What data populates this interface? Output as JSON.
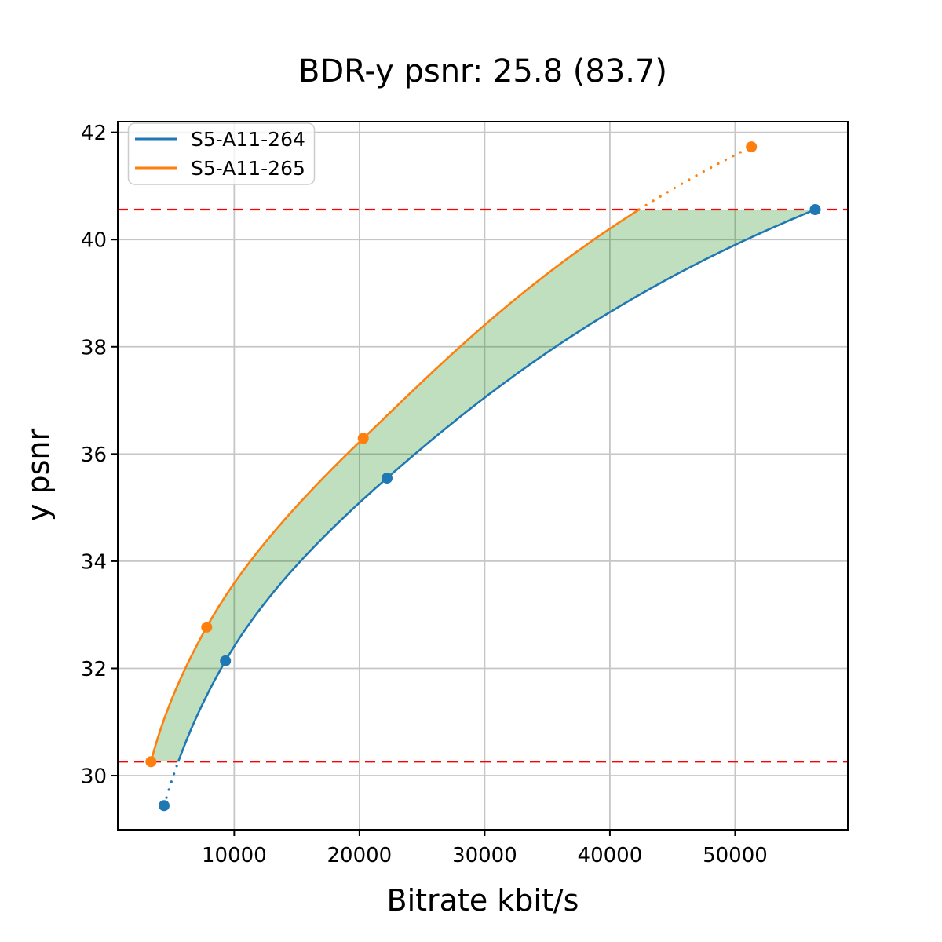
{
  "title": "BDR-y psnr: 25.8 (83.7)",
  "chart_data": {
    "type": "line",
    "title": "BDR-y psnr: 25.8 (83.7)",
    "xlabel": "Bitrate kbit/s",
    "ylabel": "y psnr",
    "xlim": [
      700,
      59000
    ],
    "ylim": [
      28.99,
      42.2
    ],
    "x_ticks": [
      10000,
      20000,
      30000,
      40000,
      50000
    ],
    "y_ticks": [
      30,
      32,
      34,
      36,
      38,
      40,
      42
    ],
    "grid": true,
    "legend_position": "upper left",
    "interpolation": "monotone-cubic-on-log-x",
    "series": [
      {
        "name": "S5-A11-264",
        "color": "#1f77b4",
        "x": [
          4400,
          9300,
          22200,
          56400
        ],
        "y": [
          29.44,
          32.14,
          35.55,
          40.56
        ]
      },
      {
        "name": "S5-A11-265",
        "color": "#ff7f0e",
        "x": [
          3350,
          7800,
          20300,
          51300
        ],
        "y": [
          30.26,
          32.77,
          36.29,
          41.73
        ]
      }
    ],
    "hlines": [
      {
        "y": 30.26,
        "color": "#ff0000",
        "style": "dashed"
      },
      {
        "y": 40.56,
        "color": "#ff0000",
        "style": "dashed"
      }
    ],
    "fill_between": {
      "color": "#008000",
      "opacity": 0.25,
      "between": [
        "S5-A11-264",
        "S5-A11-265"
      ],
      "y_min": 30.26,
      "y_max": 40.56
    },
    "style": {
      "grid_color": "#c6c6c6",
      "spine_color": "#000000",
      "background": "#ffffff",
      "legend_border": "#cccccc"
    }
  }
}
